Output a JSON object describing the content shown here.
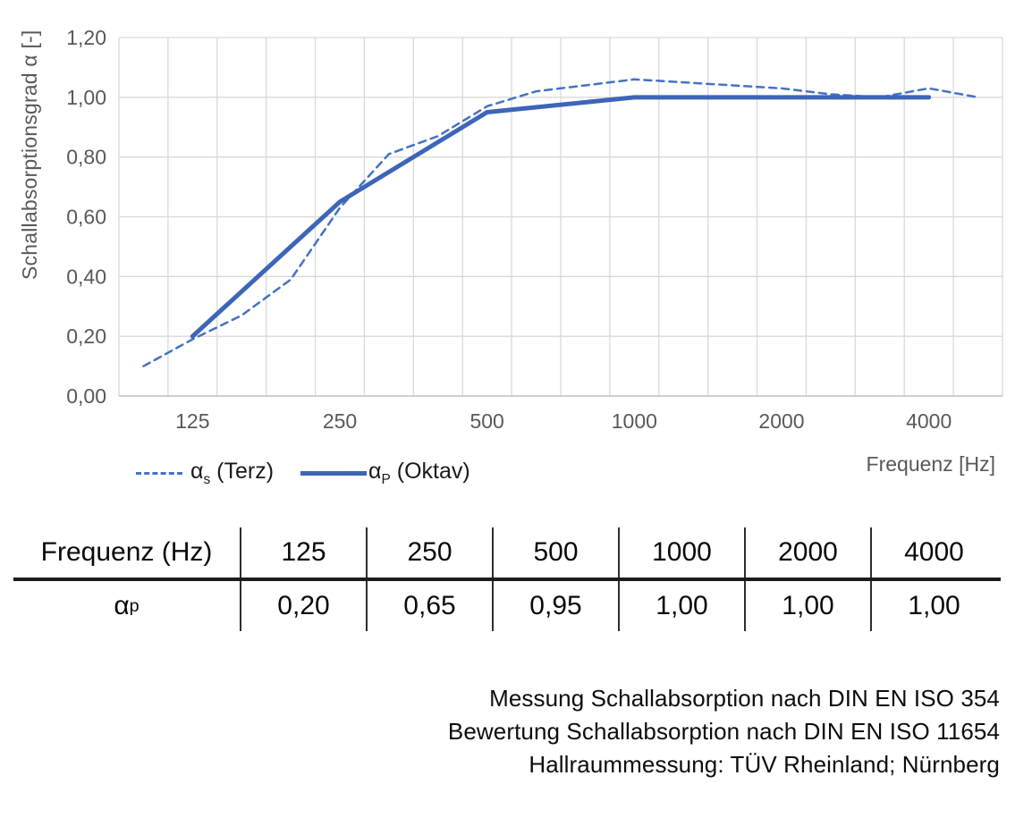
{
  "chart_data": {
    "type": "line",
    "title": "",
    "ylabel": "Schallabsorptionsgrad α [-]",
    "xlabel": "Frequenz [Hz]",
    "ylim": [
      0,
      1.2
    ],
    "ytick_step": 0.2,
    "ytick_labels": [
      "0,00",
      "0,20",
      "0,40",
      "0,60",
      "0,80",
      "1,00",
      "1,20"
    ],
    "x_categories": [
      "100",
      "125",
      "160",
      "200",
      "250",
      "315",
      "400",
      "500",
      "630",
      "800",
      "1000",
      "1250",
      "1600",
      "2000",
      "2500",
      "3150",
      "4000",
      "5000"
    ],
    "xtick_labels": [
      "125",
      "250",
      "500",
      "1000",
      "2000",
      "4000"
    ],
    "grid": true,
    "legend_position": "bottom-left",
    "series": [
      {
        "name": "αs (Terz)",
        "style": "dashed",
        "color": "#4472C4",
        "x": [
          "100",
          "125",
          "160",
          "200",
          "250",
          "315",
          "400",
          "500",
          "630",
          "800",
          "1000",
          "1250",
          "1600",
          "2000",
          "2500",
          "3150",
          "4000",
          "5000"
        ],
        "values": [
          0.1,
          0.19,
          0.27,
          0.39,
          0.63,
          0.81,
          0.87,
          0.97,
          1.02,
          1.04,
          1.06,
          1.05,
          1.04,
          1.03,
          1.01,
          1.0,
          1.03,
          1.0
        ]
      },
      {
        "name": "αP (Oktav)",
        "style": "solid",
        "color": "#3D65B8",
        "x": [
          "125",
          "250",
          "500",
          "1000",
          "2000",
          "4000"
        ],
        "values": [
          0.2,
          0.65,
          0.95,
          1.0,
          1.0,
          1.0
        ]
      }
    ],
    "legend": [
      {
        "symbol": "α",
        "sub": "s",
        "text": " (Terz)"
      },
      {
        "symbol": "α",
        "sub": "P",
        "text": " (Oktav)"
      }
    ],
    "colors": {
      "gridline": "#D9D9D9",
      "axis_line": "#BFBFBF",
      "tick_text": "#595959"
    }
  },
  "table": {
    "header_label": "Frequenz (Hz)",
    "columns": [
      "125",
      "250",
      "500",
      "1000",
      "2000",
      "4000"
    ],
    "row_symbol": "α",
    "row_sub": "p",
    "values": [
      "0,20",
      "0,65",
      "0,95",
      "1,00",
      "1,00",
      "1,00"
    ]
  },
  "footer": {
    "lines": [
      "Messung Schallabsorption nach DIN EN ISO 354",
      "Bewertung Schallabsorption nach DIN EN ISO 11654",
      "Hallraummessung: TÜV Rheinland; Nürnberg"
    ]
  }
}
